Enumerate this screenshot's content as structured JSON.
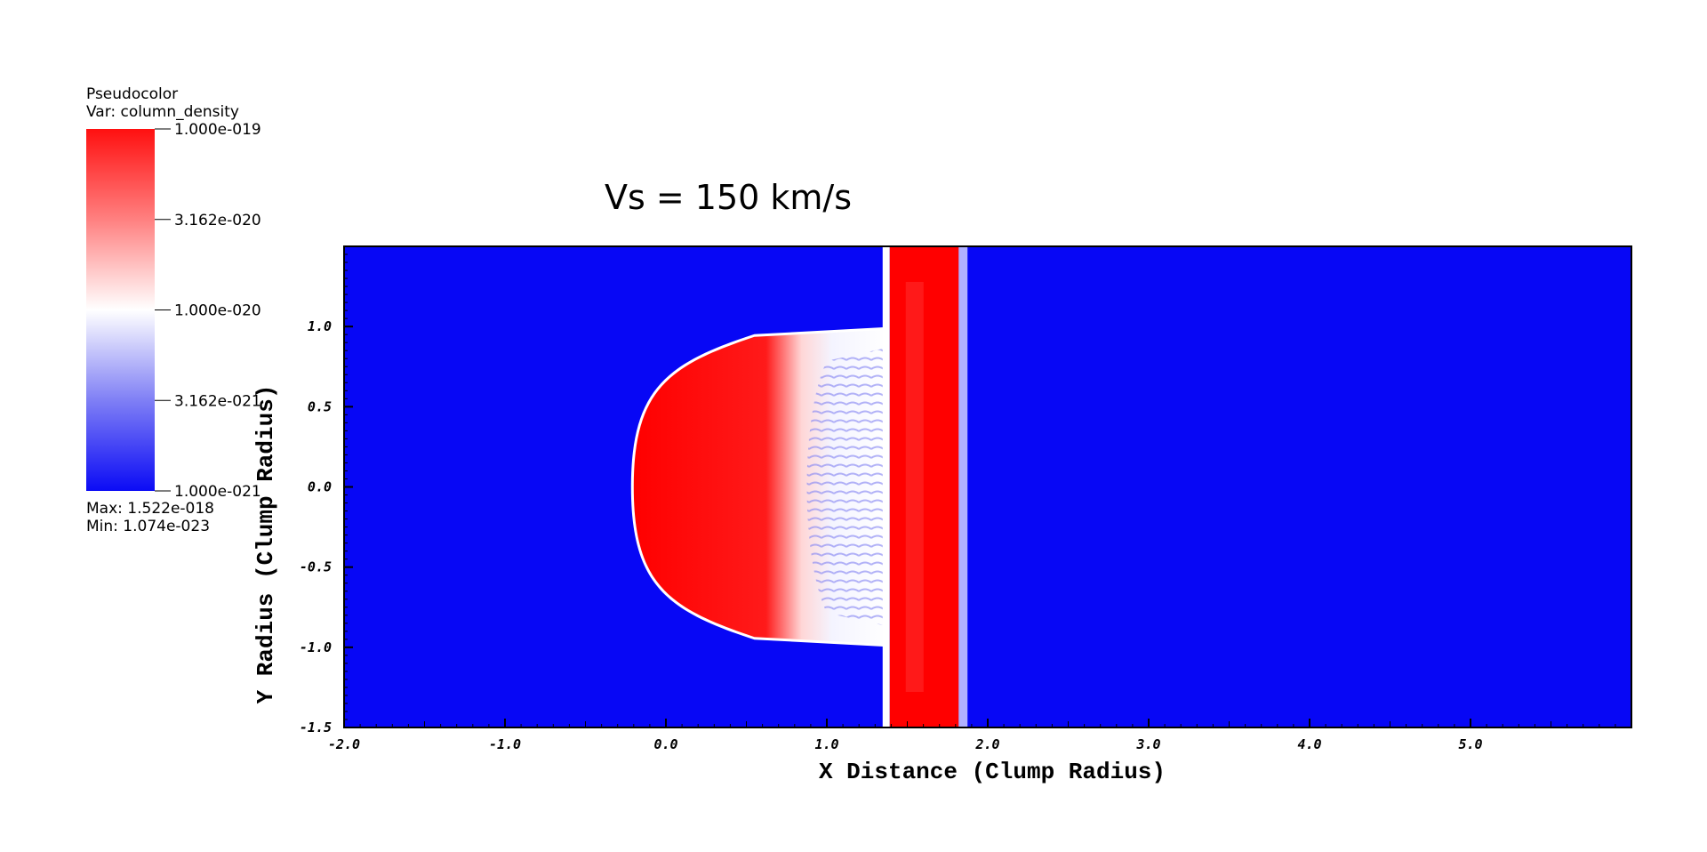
{
  "chart_data": {
    "type": "heatmap",
    "plot_type": "Pseudocolor",
    "variable_label": "Var: column_density",
    "title": "Vs = 150 km/s",
    "xlabel": "X Distance (Clump Radius)",
    "ylabel": "Y Radius (Clump Radius)",
    "xlim": [
      -2.0,
      6.0
    ],
    "ylim": [
      -1.5,
      1.5
    ],
    "x_ticks": [
      -2.0,
      -1.0,
      0.0,
      1.0,
      2.0,
      3.0,
      4.0,
      5.0
    ],
    "y_ticks": [
      -1.5,
      -1.0,
      -0.5,
      0.0,
      0.5,
      1.0
    ],
    "x_tick_labels": [
      "-2.0",
      "-1.0",
      "0.0",
      "1.0",
      "2.0",
      "3.0",
      "4.0",
      "5.0"
    ],
    "y_tick_labels": [
      "-1.5",
      "-1.0",
      "-0.5",
      "0.0",
      "0.5",
      "1.0"
    ],
    "colorbar": {
      "scale": "log",
      "labels": [
        "1.000e-019",
        "3.162e-020",
        "1.000e-020",
        "3.162e-021",
        "1.000e-021"
      ],
      "max_label": "Max:  1.522e-018",
      "min_label": "Min:  1.074e-023",
      "colors": {
        "high": "#ff0000",
        "mid": "#ffffff",
        "low": "#0000ff"
      }
    },
    "features": {
      "background_color": "#0707f5",
      "shock_band_x": [
        1.38,
        1.83
      ],
      "clump_front_x": -0.2,
      "clump_half_height": 0.98
    }
  }
}
